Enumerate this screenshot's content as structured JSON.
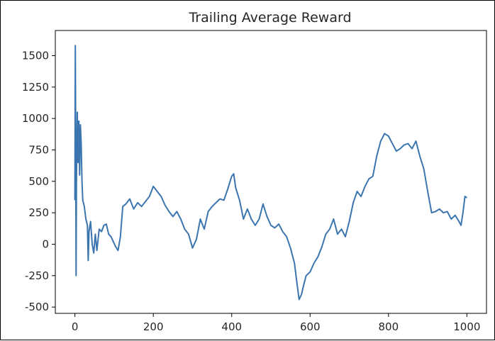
{
  "chart_data": {
    "type": "line",
    "title": "Trailing Average Reward",
    "xlabel": "",
    "ylabel": "",
    "xlim": [
      -50,
      1050
    ],
    "ylim": [
      -550,
      1700
    ],
    "x_ticks": [
      0,
      200,
      400,
      600,
      800,
      1000
    ],
    "y_ticks": [
      -500,
      -250,
      0,
      250,
      500,
      750,
      1000,
      1250,
      1500
    ],
    "grid": false,
    "line_color": "#3b75af",
    "series": [
      {
        "points": [
          [
            0,
            350
          ],
          [
            1,
            1580
          ],
          [
            2,
            900
          ],
          [
            3,
            -250
          ],
          [
            4,
            500
          ],
          [
            6,
            1050
          ],
          [
            8,
            650
          ],
          [
            10,
            980
          ],
          [
            12,
            550
          ],
          [
            14,
            950
          ],
          [
            16,
            800
          ],
          [
            18,
            500
          ],
          [
            20,
            350
          ],
          [
            24,
            300
          ],
          [
            28,
            200
          ],
          [
            32,
            150
          ],
          [
            34,
            -130
          ],
          [
            36,
            100
          ],
          [
            40,
            180
          ],
          [
            44,
            0
          ],
          [
            48,
            -70
          ],
          [
            52,
            80
          ],
          [
            56,
            -50
          ],
          [
            62,
            120
          ],
          [
            68,
            100
          ],
          [
            74,
            150
          ],
          [
            80,
            160
          ],
          [
            86,
            80
          ],
          [
            92,
            60
          ],
          [
            98,
            20
          ],
          [
            104,
            -20
          ],
          [
            110,
            -50
          ],
          [
            116,
            60
          ],
          [
            122,
            300
          ],
          [
            130,
            320
          ],
          [
            140,
            360
          ],
          [
            150,
            280
          ],
          [
            160,
            330
          ],
          [
            170,
            300
          ],
          [
            180,
            340
          ],
          [
            190,
            380
          ],
          [
            200,
            460
          ],
          [
            210,
            420
          ],
          [
            220,
            380
          ],
          [
            230,
            310
          ],
          [
            240,
            260
          ],
          [
            250,
            220
          ],
          [
            260,
            260
          ],
          [
            270,
            200
          ],
          [
            280,
            120
          ],
          [
            290,
            80
          ],
          [
            300,
            -30
          ],
          [
            310,
            40
          ],
          [
            320,
            200
          ],
          [
            330,
            120
          ],
          [
            340,
            260
          ],
          [
            350,
            300
          ],
          [
            360,
            330
          ],
          [
            370,
            360
          ],
          [
            380,
            350
          ],
          [
            390,
            440
          ],
          [
            400,
            540
          ],
          [
            405,
            560
          ],
          [
            410,
            450
          ],
          [
            420,
            350
          ],
          [
            430,
            200
          ],
          [
            440,
            280
          ],
          [
            450,
            200
          ],
          [
            460,
            150
          ],
          [
            470,
            200
          ],
          [
            480,
            320
          ],
          [
            490,
            220
          ],
          [
            500,
            150
          ],
          [
            510,
            130
          ],
          [
            520,
            160
          ],
          [
            530,
            100
          ],
          [
            540,
            60
          ],
          [
            550,
            -30
          ],
          [
            560,
            -150
          ],
          [
            566,
            -300
          ],
          [
            572,
            -440
          ],
          [
            578,
            -400
          ],
          [
            584,
            -320
          ],
          [
            590,
            -250
          ],
          [
            600,
            -220
          ],
          [
            610,
            -150
          ],
          [
            620,
            -100
          ],
          [
            630,
            -20
          ],
          [
            640,
            80
          ],
          [
            650,
            120
          ],
          [
            660,
            200
          ],
          [
            670,
            80
          ],
          [
            680,
            120
          ],
          [
            690,
            60
          ],
          [
            700,
            180
          ],
          [
            710,
            330
          ],
          [
            720,
            420
          ],
          [
            730,
            380
          ],
          [
            740,
            460
          ],
          [
            750,
            520
          ],
          [
            760,
            540
          ],
          [
            770,
            700
          ],
          [
            780,
            820
          ],
          [
            790,
            880
          ],
          [
            800,
            860
          ],
          [
            810,
            800
          ],
          [
            820,
            740
          ],
          [
            830,
            760
          ],
          [
            840,
            790
          ],
          [
            850,
            800
          ],
          [
            860,
            760
          ],
          [
            870,
            820
          ],
          [
            880,
            700
          ],
          [
            890,
            600
          ],
          [
            900,
            420
          ],
          [
            910,
            250
          ],
          [
            920,
            260
          ],
          [
            930,
            280
          ],
          [
            940,
            250
          ],
          [
            950,
            260
          ],
          [
            960,
            200
          ],
          [
            970,
            230
          ],
          [
            980,
            180
          ],
          [
            985,
            150
          ],
          [
            990,
            250
          ],
          [
            995,
            380
          ],
          [
            1000,
            370
          ]
        ]
      }
    ]
  }
}
